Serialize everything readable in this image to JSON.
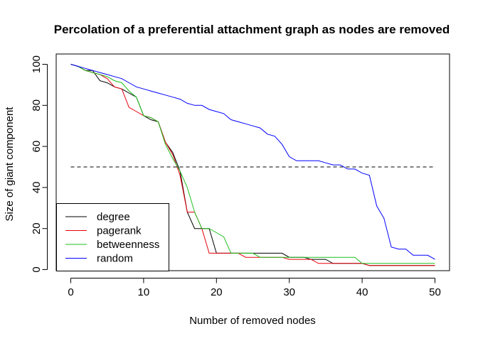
{
  "chart_data": {
    "type": "line",
    "title": "Percolation of a preferential attachment graph as nodes are removed",
    "xlabel": "Number of removed nodes",
    "ylabel": "Size of giant component",
    "xlim": [
      0,
      50
    ],
    "ylim": [
      0,
      100
    ],
    "xticks": [
      0,
      10,
      20,
      30,
      40,
      50
    ],
    "yticks": [
      0,
      20,
      40,
      60,
      80,
      100
    ],
    "grid": false,
    "legend_position": "bottom-left",
    "reference_line": {
      "y": 50,
      "style": "dashed",
      "color": "#000000"
    },
    "x": [
      0,
      1,
      2,
      3,
      4,
      5,
      6,
      7,
      8,
      9,
      10,
      11,
      12,
      13,
      14,
      15,
      16,
      17,
      18,
      19,
      20,
      21,
      22,
      23,
      24,
      25,
      26,
      27,
      28,
      29,
      30,
      31,
      32,
      33,
      34,
      35,
      36,
      37,
      38,
      39,
      40,
      41,
      42,
      43,
      44,
      45,
      46,
      47,
      48,
      49,
      50
    ],
    "series": [
      {
        "name": "degree",
        "color": "#000000",
        "values": [
          100,
          99,
          97,
          97,
          92,
          91,
          89,
          88,
          86,
          84,
          75,
          73,
          72,
          62,
          57,
          48,
          28,
          20,
          20,
          20,
          8,
          8,
          8,
          8,
          8,
          8,
          8,
          8,
          8,
          8,
          6,
          6,
          6,
          5,
          5,
          5,
          3,
          3,
          3,
          3,
          3,
          2,
          2,
          2,
          2,
          2,
          2,
          2,
          2,
          2,
          2
        ]
      },
      {
        "name": "pagerank",
        "color": "#e8000b",
        "values": [
          100,
          99,
          97,
          96,
          95,
          93,
          89,
          88,
          79,
          77,
          75,
          74,
          72,
          62,
          56,
          46,
          28,
          28,
          20,
          8,
          8,
          8,
          8,
          8,
          6,
          6,
          6,
          6,
          6,
          6,
          5,
          5,
          5,
          5,
          3,
          3,
          3,
          3,
          3,
          3,
          3,
          2,
          2,
          2,
          2,
          2,
          2,
          2,
          2,
          2,
          2
        ]
      },
      {
        "name": "betweenness",
        "color": "#1fbf1f",
        "values": [
          100,
          99,
          97,
          96,
          95,
          94,
          92,
          91,
          87,
          84,
          75,
          74,
          72,
          61,
          54,
          48,
          40,
          28,
          20,
          20,
          18,
          16,
          8,
          8,
          8,
          8,
          6,
          6,
          6,
          6,
          6,
          6,
          6,
          6,
          6,
          6,
          6,
          6,
          6,
          6,
          3,
          3,
          3,
          3,
          3,
          3,
          3,
          3,
          3,
          3,
          3
        ]
      },
      {
        "name": "random",
        "color": "#0000ff",
        "values": [
          100,
          99,
          98,
          97,
          96,
          95,
          94,
          93,
          91,
          89,
          88,
          87,
          86,
          85,
          84,
          83,
          81,
          80,
          80,
          78,
          77,
          76,
          73,
          72,
          71,
          70,
          69,
          66,
          65,
          61,
          55,
          53,
          53,
          53,
          53,
          52,
          51,
          51,
          49,
          49,
          47,
          46,
          31,
          25,
          11,
          10,
          10,
          7,
          7,
          7,
          5
        ]
      }
    ]
  }
}
